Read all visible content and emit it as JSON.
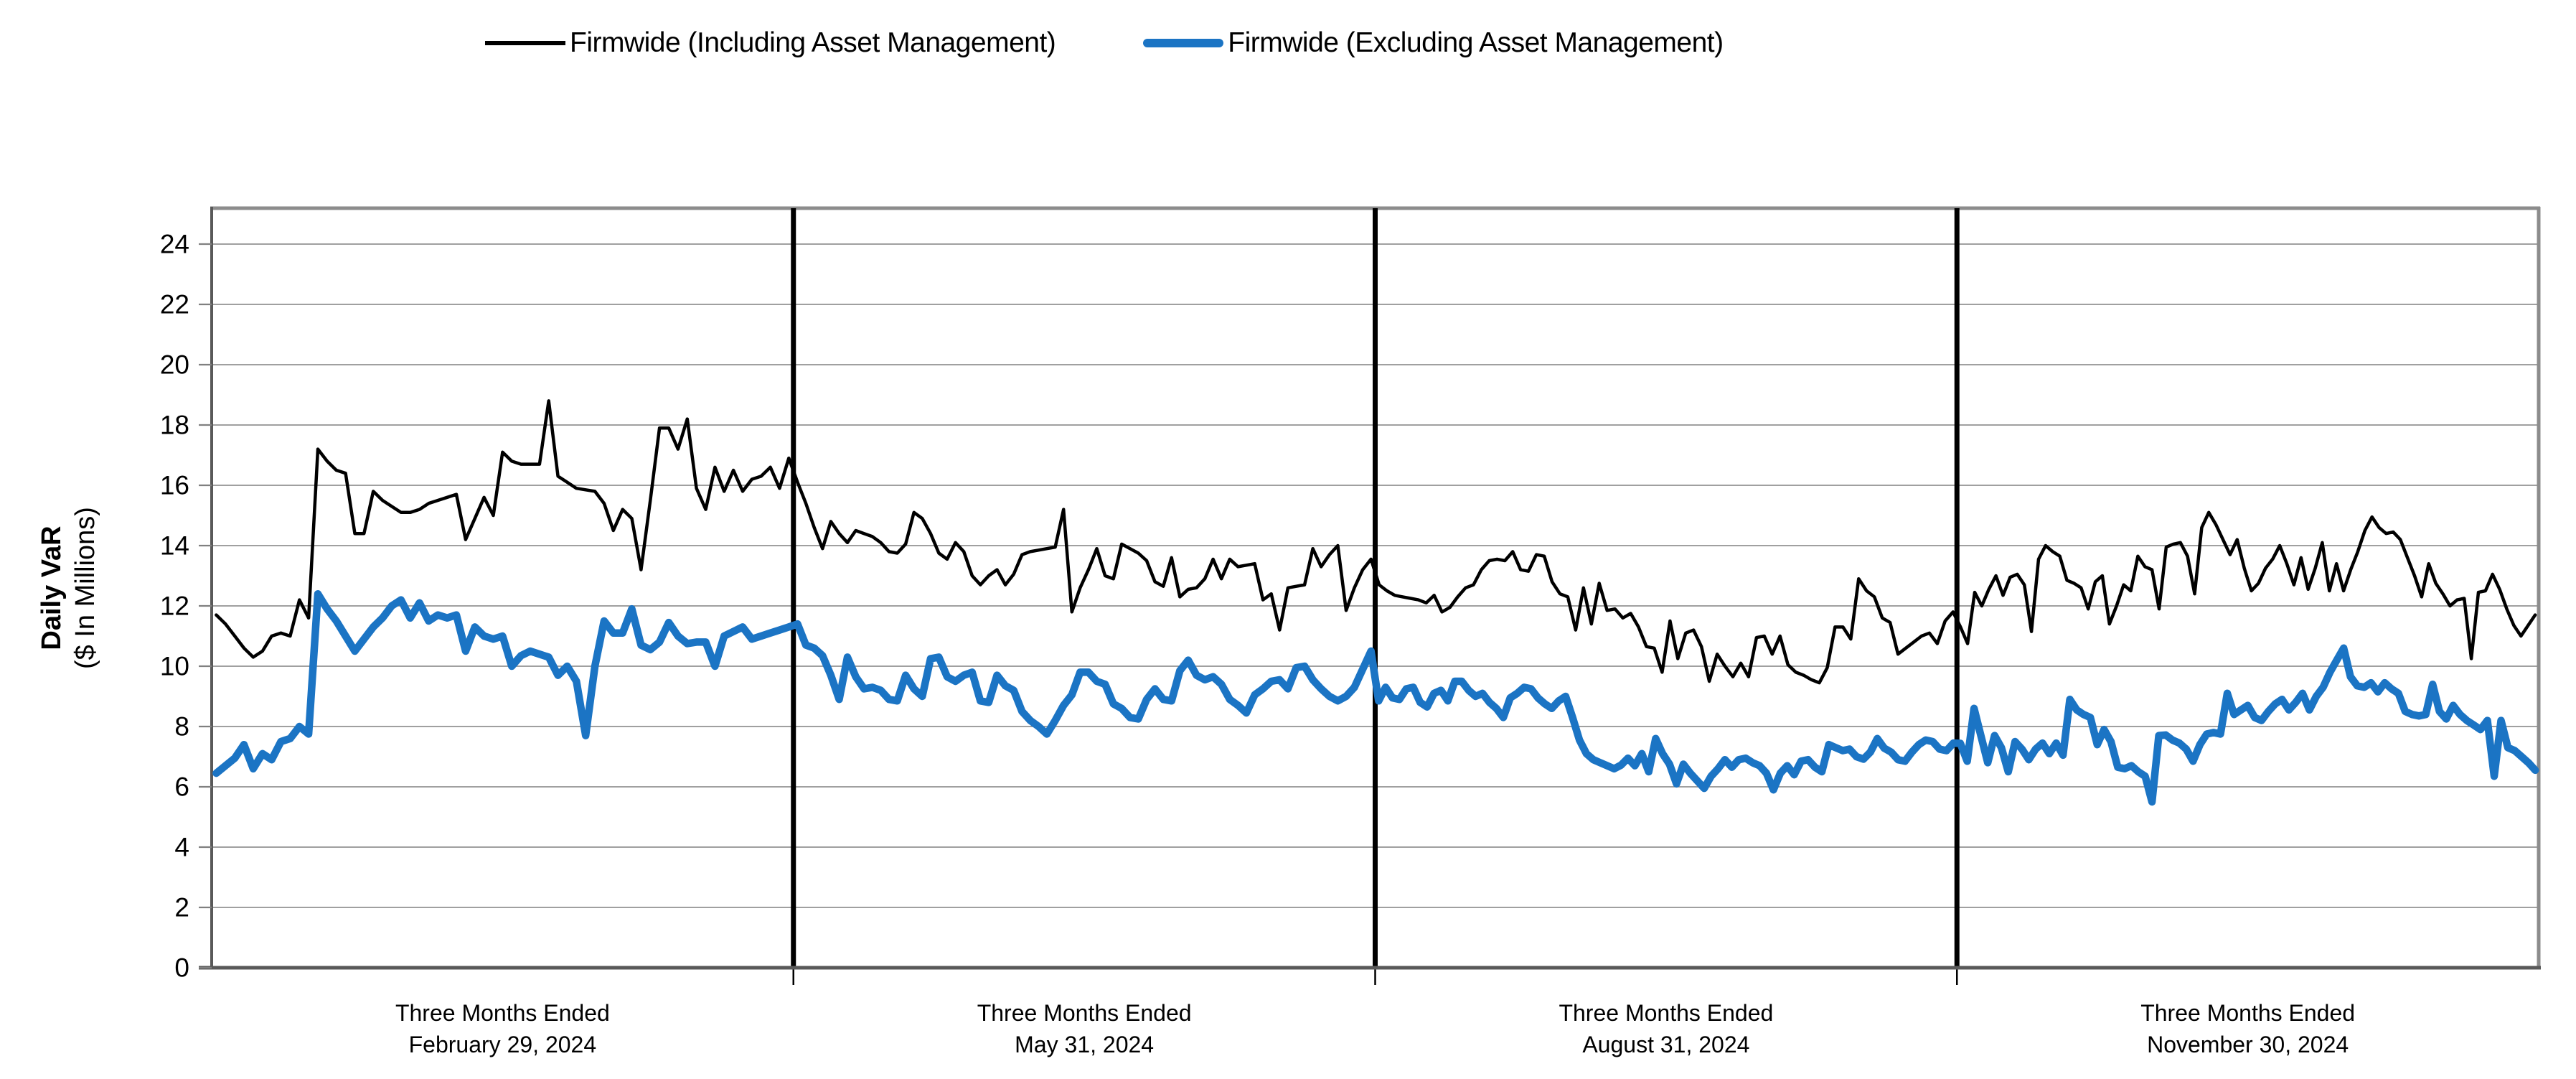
{
  "legend": {
    "items": [
      {
        "label": "Firmwide (Including Asset Management)",
        "color": "#000000",
        "style": "thin-line"
      },
      {
        "label": "Firmwide (Excluding Asset Management)",
        "color": "#1B74C4",
        "style": "thick-line"
      }
    ]
  },
  "chart_data": {
    "type": "line",
    "title": "",
    "ylabel_line1": "Daily VaR",
    "ylabel_line2": "($ In Millions)",
    "ylim": [
      0,
      25.2
    ],
    "yticks": [
      0,
      2,
      4,
      6,
      8,
      10,
      12,
      14,
      16,
      18,
      20,
      22,
      24
    ],
    "grid_color": "#808080",
    "frame_color": "#8C8C8C",
    "axis_color": "#595959",
    "divider_color": "#000000",
    "legend_position": "top-center",
    "categories": [
      {
        "line1": "Three Months Ended",
        "line2": "February 29, 2024"
      },
      {
        "line1": "Three Months Ended",
        "line2": "May 31, 2024"
      },
      {
        "line1": "Three Months Ended",
        "line2": "August 31, 2024"
      },
      {
        "line1": "Three Months Ended",
        "line2": "November 30, 2024"
      }
    ],
    "series": [
      {
        "name": "Firmwide (Including Asset Management)",
        "color": "#000000",
        "stroke_width": 4.5,
        "quarters": [
          [
            11.7,
            11.4,
            11.0,
            10.6,
            10.3,
            10.5,
            11.0,
            11.1,
            11.0,
            12.2,
            11.6,
            17.2,
            16.8,
            16.5,
            16.4,
            14.4,
            14.4,
            15.8,
            15.5,
            15.3,
            15.1,
            15.1,
            15.2,
            15.4,
            15.5,
            15.6,
            15.7,
            14.2,
            14.9,
            15.6,
            15.0,
            17.1,
            16.8,
            16.7,
            16.7,
            16.7,
            18.8,
            16.3,
            16.1,
            15.9,
            15.85,
            15.8,
            15.4,
            14.5,
            15.2,
            14.9,
            13.2,
            15.5,
            17.9,
            17.9,
            17.2,
            18.2,
            15.9,
            15.2,
            16.6,
            15.8,
            16.5,
            15.8,
            16.2,
            16.3,
            16.6,
            15.9,
            16.9
          ],
          [
            16.1,
            15.4,
            14.6,
            13.9,
            14.8,
            14.4,
            14.1,
            14.5,
            14.4,
            14.3,
            14.1,
            13.8,
            13.75,
            14.05,
            15.1,
            14.9,
            14.4,
            13.75,
            13.55,
            14.1,
            13.8,
            13.0,
            12.7,
            13.0,
            13.2,
            12.7,
            13.05,
            13.7,
            13.8,
            13.85,
            13.9,
            13.95,
            15.2,
            11.8,
            12.6,
            13.2,
            13.9,
            13.0,
            12.9,
            14.05,
            13.9,
            13.75,
            13.5,
            12.8,
            12.65,
            13.6,
            12.3,
            12.55,
            12.6,
            12.9,
            13.55,
            12.9,
            13.55,
            13.3,
            13.35,
            13.4,
            12.2,
            12.4,
            11.2,
            12.6,
            12.65,
            12.7,
            13.9,
            13.3,
            13.7,
            14.0,
            11.85,
            12.6,
            13.2,
            13.55
          ],
          [
            12.7,
            12.5,
            12.35,
            12.3,
            12.25,
            12.2,
            12.1,
            12.35,
            11.8,
            11.95,
            12.3,
            12.6,
            12.7,
            13.2,
            13.5,
            13.55,
            13.5,
            13.8,
            13.2,
            13.15,
            13.7,
            13.65,
            12.8,
            12.4,
            12.3,
            11.2,
            12.6,
            11.4,
            12.75,
            11.85,
            11.9,
            11.6,
            11.75,
            11.3,
            10.65,
            10.6,
            9.8,
            11.5,
            10.25,
            11.1,
            11.2,
            10.65,
            9.5,
            10.4,
            10.0,
            9.65,
            10.1,
            9.65,
            10.95,
            11.0,
            10.4,
            11.0,
            10.05,
            9.8,
            9.7,
            9.55,
            9.45,
            9.95,
            11.3,
            11.3,
            10.9,
            12.9,
            12.5,
            12.3,
            11.6,
            11.45,
            10.4,
            10.6,
            10.8,
            11.0,
            11.1,
            10.75,
            11.5,
            11.8
          ],
          [
            11.3,
            10.75,
            12.45,
            12.0,
            12.55,
            13.0,
            12.35,
            12.95,
            13.05,
            12.7,
            11.15,
            13.55,
            14.0,
            13.8,
            13.65,
            12.85,
            12.75,
            12.6,
            11.9,
            12.8,
            13.0,
            11.4,
            12.0,
            12.7,
            12.5,
            13.65,
            13.3,
            13.2,
            11.9,
            13.95,
            14.05,
            14.1,
            13.65,
            12.4,
            14.6,
            15.1,
            14.7,
            14.2,
            13.7,
            14.2,
            13.25,
            12.5,
            12.75,
            13.25,
            13.55,
            14.0,
            13.4,
            12.7,
            13.6,
            12.55,
            13.25,
            14.1,
            12.5,
            13.4,
            12.5,
            13.2,
            13.8,
            14.5,
            14.95,
            14.6,
            14.4,
            14.45,
            14.2,
            13.6,
            13.0,
            12.3,
            13.4,
            12.75,
            12.4,
            12.0,
            12.2,
            12.25,
            10.25,
            12.45,
            12.5,
            13.05,
            12.55,
            11.9,
            11.35,
            11.0,
            11.35,
            11.7
          ]
        ]
      },
      {
        "name": "Firmwide (Excluding Asset Management)",
        "color": "#1B74C4",
        "stroke_width": 10.5,
        "quarters": [
          [
            6.45,
            6.7,
            6.95,
            7.4,
            6.6,
            7.1,
            6.9,
            7.5,
            7.6,
            8.0,
            7.75,
            12.4,
            11.9,
            11.5,
            11.0,
            10.5,
            10.9,
            11.3,
            11.6,
            12.0,
            12.2,
            11.6,
            12.1,
            11.5,
            11.7,
            11.6,
            11.7,
            10.5,
            11.3,
            11.0,
            10.9,
            11.0,
            10.0,
            10.35,
            10.5,
            10.4,
            10.3,
            9.7,
            10.0,
            9.5,
            7.7,
            10.0,
            11.5,
            11.1,
            11.1,
            11.9,
            10.7,
            10.55,
            10.8,
            11.45,
            11.0,
            10.75,
            10.8,
            10.8,
            10.0,
            11.0,
            11.15,
            11.3,
            10.9,
            11.0,
            11.1,
            11.2,
            11.3
          ],
          [
            11.4,
            10.7,
            10.6,
            10.35,
            9.7,
            8.9,
            10.3,
            9.65,
            9.25,
            9.3,
            9.2,
            8.9,
            8.85,
            9.7,
            9.25,
            9.0,
            10.25,
            10.3,
            9.65,
            9.5,
            9.7,
            9.8,
            8.85,
            8.8,
            9.7,
            9.35,
            9.2,
            8.5,
            8.2,
            8.0,
            7.75,
            8.2,
            8.7,
            9.05,
            9.8,
            9.8,
            9.5,
            9.4,
            8.75,
            8.6,
            8.3,
            8.25,
            8.9,
            9.25,
            8.9,
            8.85,
            9.85,
            10.2,
            9.7,
            9.55,
            9.65,
            9.4,
            8.9,
            8.7,
            8.45,
            9.05,
            9.25,
            9.5,
            9.55,
            9.25,
            9.95,
            10.0,
            9.55,
            9.25,
            9.0,
            8.85,
            9.0,
            9.3,
            9.9,
            10.5
          ],
          [
            8.85,
            9.3,
            8.95,
            8.9,
            9.25,
            9.3,
            8.8,
            8.65,
            9.1,
            9.2,
            8.85,
            9.5,
            9.5,
            9.2,
            9.0,
            9.1,
            8.8,
            8.6,
            8.3,
            8.95,
            9.1,
            9.3,
            9.25,
            8.95,
            8.75,
            8.6,
            8.85,
            9.0,
            8.3,
            7.55,
            7.1,
            6.9,
            6.8,
            6.7,
            6.6,
            6.72,
            6.95,
            6.7,
            7.1,
            6.5,
            7.6,
            7.1,
            6.75,
            6.1,
            6.75,
            6.45,
            6.2,
            5.95,
            6.35,
            6.6,
            6.9,
            6.65,
            6.9,
            6.95,
            6.8,
            6.7,
            6.45,
            5.9,
            6.45,
            6.7,
            6.4,
            6.85,
            6.9,
            6.65,
            6.5,
            7.4,
            7.3,
            7.2,
            7.25,
            7.0,
            6.92,
            7.15,
            7.6,
            7.28,
            7.15,
            6.9,
            6.85,
            7.15,
            7.4,
            7.55,
            7.5,
            7.25,
            7.2,
            7.45
          ],
          [
            7.44,
            6.85,
            8.6,
            7.7,
            6.8,
            7.7,
            7.3,
            6.5,
            7.5,
            7.25,
            6.9,
            7.25,
            7.45,
            7.1,
            7.45,
            7.05,
            8.9,
            8.55,
            8.4,
            8.3,
            7.4,
            7.9,
            7.5,
            6.65,
            6.6,
            6.7,
            6.5,
            6.35,
            5.5,
            7.7,
            7.72,
            7.55,
            7.45,
            7.25,
            6.85,
            7.4,
            7.75,
            7.8,
            7.75,
            9.1,
            8.4,
            8.55,
            8.7,
            8.3,
            8.2,
            8.5,
            8.75,
            8.9,
            8.55,
            8.8,
            9.1,
            8.55,
            9.0,
            9.3,
            9.8,
            10.2,
            10.6,
            9.65,
            9.35,
            9.3,
            9.45,
            9.15,
            9.45,
            9.25,
            9.1,
            8.5,
            8.4,
            8.35,
            8.4,
            9.4,
            8.5,
            8.25,
            8.7,
            8.4,
            8.2,
            8.05,
            7.9,
            8.2,
            6.35,
            8.2,
            7.3,
            7.2,
            7.0,
            6.8,
            6.55
          ]
        ]
      }
    ]
  }
}
